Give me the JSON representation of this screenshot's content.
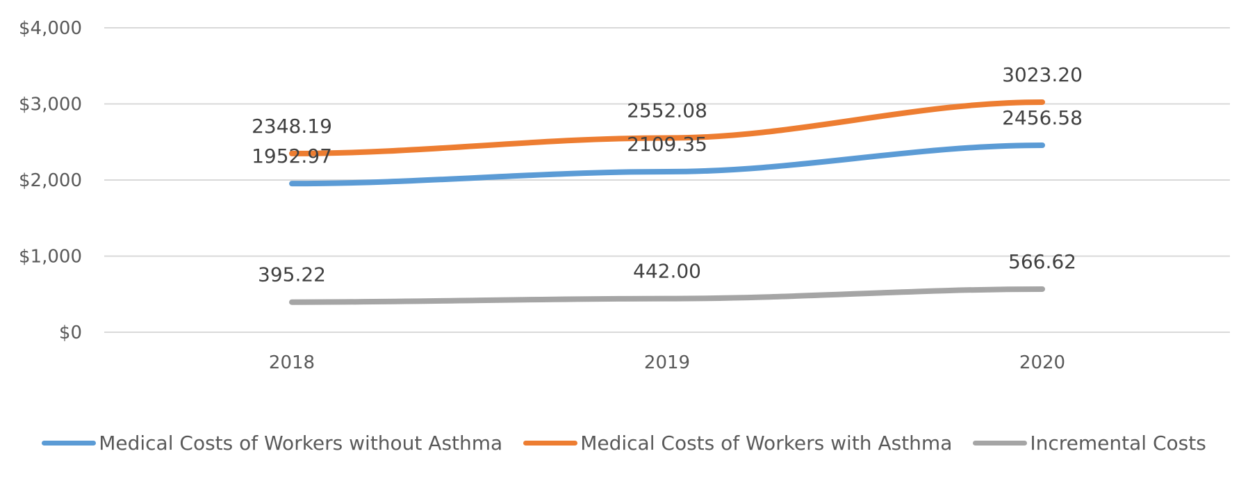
{
  "chart_data": {
    "type": "line",
    "categories": [
      "2018",
      "2019",
      "2020"
    ],
    "series": [
      {
        "name": "Medical Costs of Workers without Asthma",
        "values": [
          1952.97,
          2109.35,
          2456.58
        ],
        "color": "#5B9BD5",
        "labels": [
          "1952.97",
          "2109.35",
          "2456.58"
        ]
      },
      {
        "name": "Medical Costs of Workers with Asthma",
        "values": [
          2348.19,
          2552.08,
          3023.2
        ],
        "color": "#ED7D31",
        "labels": [
          "2348.19",
          "2552.08",
          "3023.20"
        ]
      },
      {
        "name": "Incremental Costs",
        "values": [
          395.22,
          442.0,
          566.62
        ],
        "color": "#A5A5A5",
        "labels": [
          "395.22",
          "442.00",
          "566.62"
        ]
      }
    ],
    "ylim": [
      0,
      4000
    ],
    "yticks": [
      0,
      1000,
      2000,
      3000,
      4000
    ],
    "ytick_labels": [
      "$0",
      "$1,000",
      "$2,000",
      "$3,000",
      "$4,000"
    ],
    "grid": true,
    "legend_position": "bottom",
    "title": "",
    "xlabel": "",
    "ylabel": ""
  }
}
